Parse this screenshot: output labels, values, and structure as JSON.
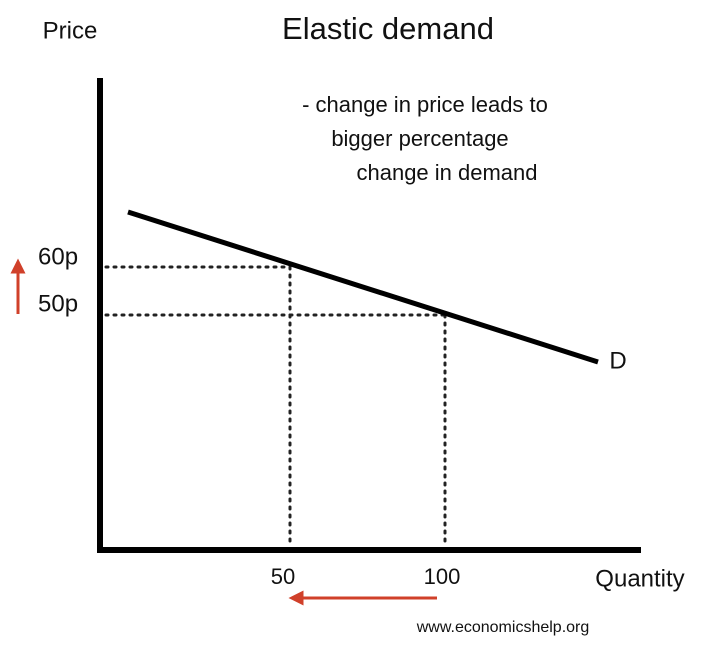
{
  "title": "Elastic demand",
  "y_axis_label": "Price",
  "x_axis_label": "Quantity",
  "annotation": [
    "- change in price leads to",
    "bigger percentage",
    "change in demand"
  ],
  "curve_label": "D",
  "price_labels": [
    "60p",
    "50p"
  ],
  "quantity_labels": [
    "50",
    "100"
  ],
  "source": "www.economicshelp.org"
}
